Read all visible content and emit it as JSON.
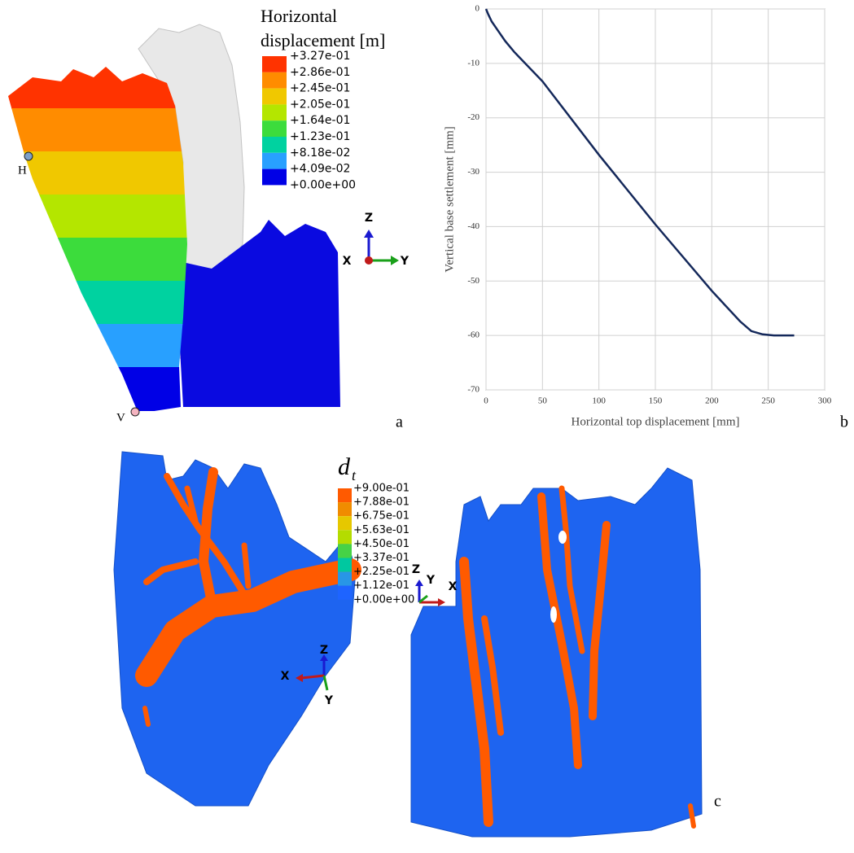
{
  "panel_a": {
    "label": "a",
    "legend_title": [
      "Horizontal",
      "displacement [m]"
    ],
    "legend_labels": [
      "+3.27e-01",
      "+2.86e-01",
      "+2.45e-01",
      "+2.05e-01",
      "+1.64e-01",
      "+1.23e-01",
      "+8.18e-02",
      "+4.09e-02",
      "+0.00e+00"
    ],
    "legend_colors": [
      "#ff3300",
      "#ff8c00",
      "#f0c800",
      "#b4e600",
      "#3cdc3c",
      "#00d2a0",
      "#28a0ff",
      "#0000e6"
    ],
    "points": [
      "H",
      "V"
    ],
    "triad": [
      "Z",
      "X",
      "Y"
    ]
  },
  "chart_data": {
    "type": "line",
    "label": "b",
    "x_label": "Horizontal top displacement [mm]",
    "y_label": "Vertical base settlement [mm]",
    "x": [
      0,
      2,
      5,
      10,
      17,
      25,
      50,
      100,
      150,
      200,
      225,
      235,
      245,
      255,
      273
    ],
    "series": [
      {
        "color": "#14285a",
        "values": [
          0,
          -1,
          -2.3,
          -3.8,
          -5.9,
          -7.9,
          -13.3,
          -26.8,
          -39.6,
          -51.8,
          -57.4,
          -59.2,
          -59.8,
          -60,
          -60
        ]
      }
    ],
    "xlim": [
      0,
      300
    ],
    "ylim": [
      -70,
      0
    ],
    "xticks": [
      0,
      50,
      100,
      150,
      200,
      250,
      300
    ],
    "yticks": [
      0,
      -10,
      -20,
      -30,
      -40,
      -50,
      -60,
      -70
    ],
    "grid": true
  },
  "panel_c": {
    "label": "c",
    "legend_title": {
      "main": "d",
      "sub": "t"
    },
    "legend_labels": [
      "+9.00e-01",
      "+7.88e-01",
      "+6.75e-01",
      "+5.63e-01",
      "+4.50e-01",
      "+3.37e-01",
      "+2.25e-01",
      "+1.12e-01",
      "+0.00e+00"
    ],
    "legend_colors": [
      "#ff5a00",
      "#f08c00",
      "#e6c800",
      "#b4dc00",
      "#46d246",
      "#00c8a0",
      "#2896e6",
      "#1e64ff"
    ],
    "triad_left": [
      "Z",
      "X",
      "Y"
    ],
    "triad_right": [
      "Z",
      "Y",
      "X"
    ]
  }
}
